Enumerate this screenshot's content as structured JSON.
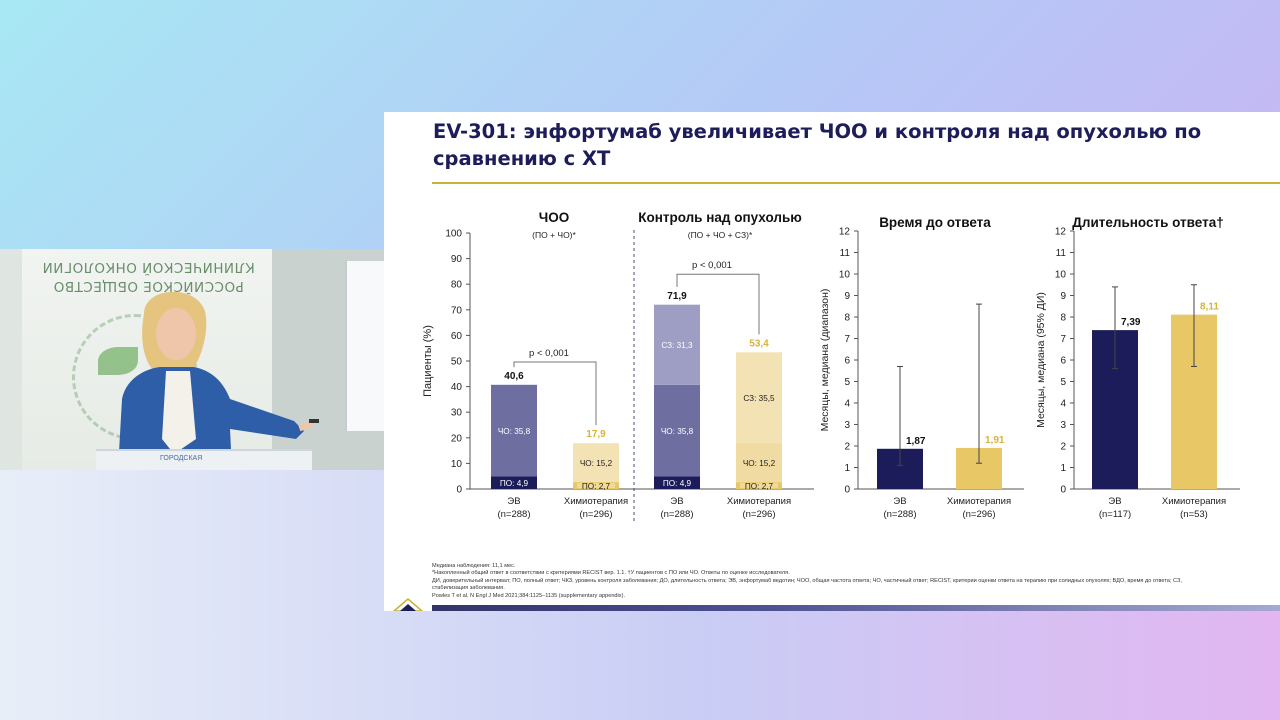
{
  "slide": {
    "title": "EV-301: энфортумаб увеличивает ЧОО и контроля над опухолью по сравнению с ХТ",
    "footnotes": [
      "Медиана наблюдения: 11,1 мес.",
      "*Накопленный общий ответ в соответствии с критериями RECIST вер. 1.1. †У пациентов с ПО или ЧО. Ответы по оценке исследователя.",
      "ДИ, доверительный интервал; ПО, полный ответ; ЧКЗ, уровень контроля заболевания; ДО, длительность ответа; ЭВ, энфортумаб ведотин; ЧОО, общая частота ответа; ЧО, частичный ответ; RECIST, критерии оценки ответа на терапию при солидных опухолях; ВДО, время до ответа; СЗ,",
      "стабилизация заболевания.",
      "Powles T et al. N Engl J Med 2021;384:1125–1135 (supplementary appendix)."
    ]
  },
  "video": {
    "wall_text_line1": "РОССИЙСКОЕ ОБЩЕСТВО",
    "wall_text_line2": "КЛИНИЧЕСКОЙ ОНКОЛОГИИ",
    "podium_text": "ГОРОДСКАЯ"
  },
  "colors": {
    "ev_dark": "#1c1c5a",
    "ev_mid": "#6f6ea1",
    "ev_light": "#9e9dc4",
    "chemo_dark": "#e7c766",
    "chemo_light": "#f3e2b4",
    "chemo_label": "#d8b23c",
    "axis": "#555555"
  },
  "chart_data": [
    {
      "type": "bar",
      "panel": "response",
      "ylabel": "Пациенты (%)",
      "ylim": [
        0,
        100
      ],
      "yticks": [
        "0",
        "10",
        "20",
        "30",
        "40",
        "50",
        "60",
        "70",
        "80",
        "90",
        "100"
      ],
      "groups": [
        {
          "title": "ЧОО",
          "subtitle": "(ПО + ЧО)*",
          "p_value": "p < 0,001",
          "bars": [
            {
              "category": "ЭВ",
              "n": "(n=288)",
              "arm": "ev",
              "total": 40.6,
              "total_label": "40,6",
              "segments": [
                {
                  "name": "ПО",
                  "value": 4.9,
                  "label": "ПО: 4,9"
                },
                {
                  "name": "ЧО",
                  "value": 35.8,
                  "label": "ЧО: 35,8"
                }
              ]
            },
            {
              "category": "Химиотерапия",
              "n": "(n=296)",
              "arm": "chemo",
              "total": 17.9,
              "total_label": "17,9",
              "segments": [
                {
                  "name": "ПО",
                  "value": 2.7,
                  "label": "ПО: 2,7"
                },
                {
                  "name": "ЧО",
                  "value": 15.2,
                  "label": "ЧО: 15,2"
                }
              ]
            }
          ]
        },
        {
          "title": "Контроль над опухолью",
          "subtitle": "(ПО + ЧО + СЗ)*",
          "p_value": "p < 0,001",
          "bars": [
            {
              "category": "ЭВ",
              "n": "(n=288)",
              "arm": "ev",
              "total": 71.9,
              "total_label": "71,9",
              "segments": [
                {
                  "name": "ПО",
                  "value": 4.9,
                  "label": "ПО: 4,9"
                },
                {
                  "name": "ЧО",
                  "value": 35.8,
                  "label": "ЧО: 35,8"
                },
                {
                  "name": "СЗ",
                  "value": 31.3,
                  "label": "СЗ: 31,3"
                }
              ]
            },
            {
              "category": "Химиотерапия",
              "n": "(n=296)",
              "arm": "chemo",
              "total": 53.4,
              "total_label": "53,4",
              "segments": [
                {
                  "name": "ПО",
                  "value": 2.7,
                  "label": "ПО: 2,7"
                },
                {
                  "name": "ЧО",
                  "value": 15.2,
                  "label": "ЧО: 15,2"
                },
                {
                  "name": "СЗ",
                  "value": 35.5,
                  "label": "СЗ: 35,5"
                }
              ]
            }
          ]
        }
      ]
    },
    {
      "type": "bar",
      "panel": "ttr",
      "title": "Время до ответа",
      "ylabel": "Месяцы, медиана (диапазон)",
      "ylim": [
        0,
        12
      ],
      "yticks": [
        "0",
        "1",
        "2",
        "3",
        "4",
        "5",
        "6",
        "7",
        "8",
        "9",
        "10",
        "11",
        "12"
      ],
      "bars": [
        {
          "category": "ЭВ",
          "n": "(n=288)",
          "arm": "ev",
          "value": 1.87,
          "label": "1,87",
          "err_low": 1.1,
          "err_high": 5.7
        },
        {
          "category": "Химиотерапия",
          "n": "(n=296)",
          "arm": "chemo",
          "value": 1.91,
          "label": "1,91",
          "err_low": 1.2,
          "err_high": 8.6
        }
      ]
    },
    {
      "type": "bar",
      "panel": "dor",
      "title": "Длительность ответа†",
      "ylabel": "Месяцы, медиана (95% ДИ)",
      "ylim": [
        0,
        12
      ],
      "yticks": [
        "0",
        "1",
        "2",
        "3",
        "4",
        "5",
        "6",
        "7",
        "8",
        "9",
        "10",
        "11",
        "12"
      ],
      "bars": [
        {
          "category": "ЭВ",
          "n": "(n=117)",
          "arm": "ev",
          "value": 7.39,
          "label": "7,39",
          "err_low": 5.6,
          "err_high": 9.4
        },
        {
          "category": "Химиотерапия",
          "n": "(n=53)",
          "arm": "chemo",
          "value": 8.11,
          "label": "8,11",
          "err_low": 5.7,
          "err_high": 9.5
        }
      ]
    }
  ]
}
